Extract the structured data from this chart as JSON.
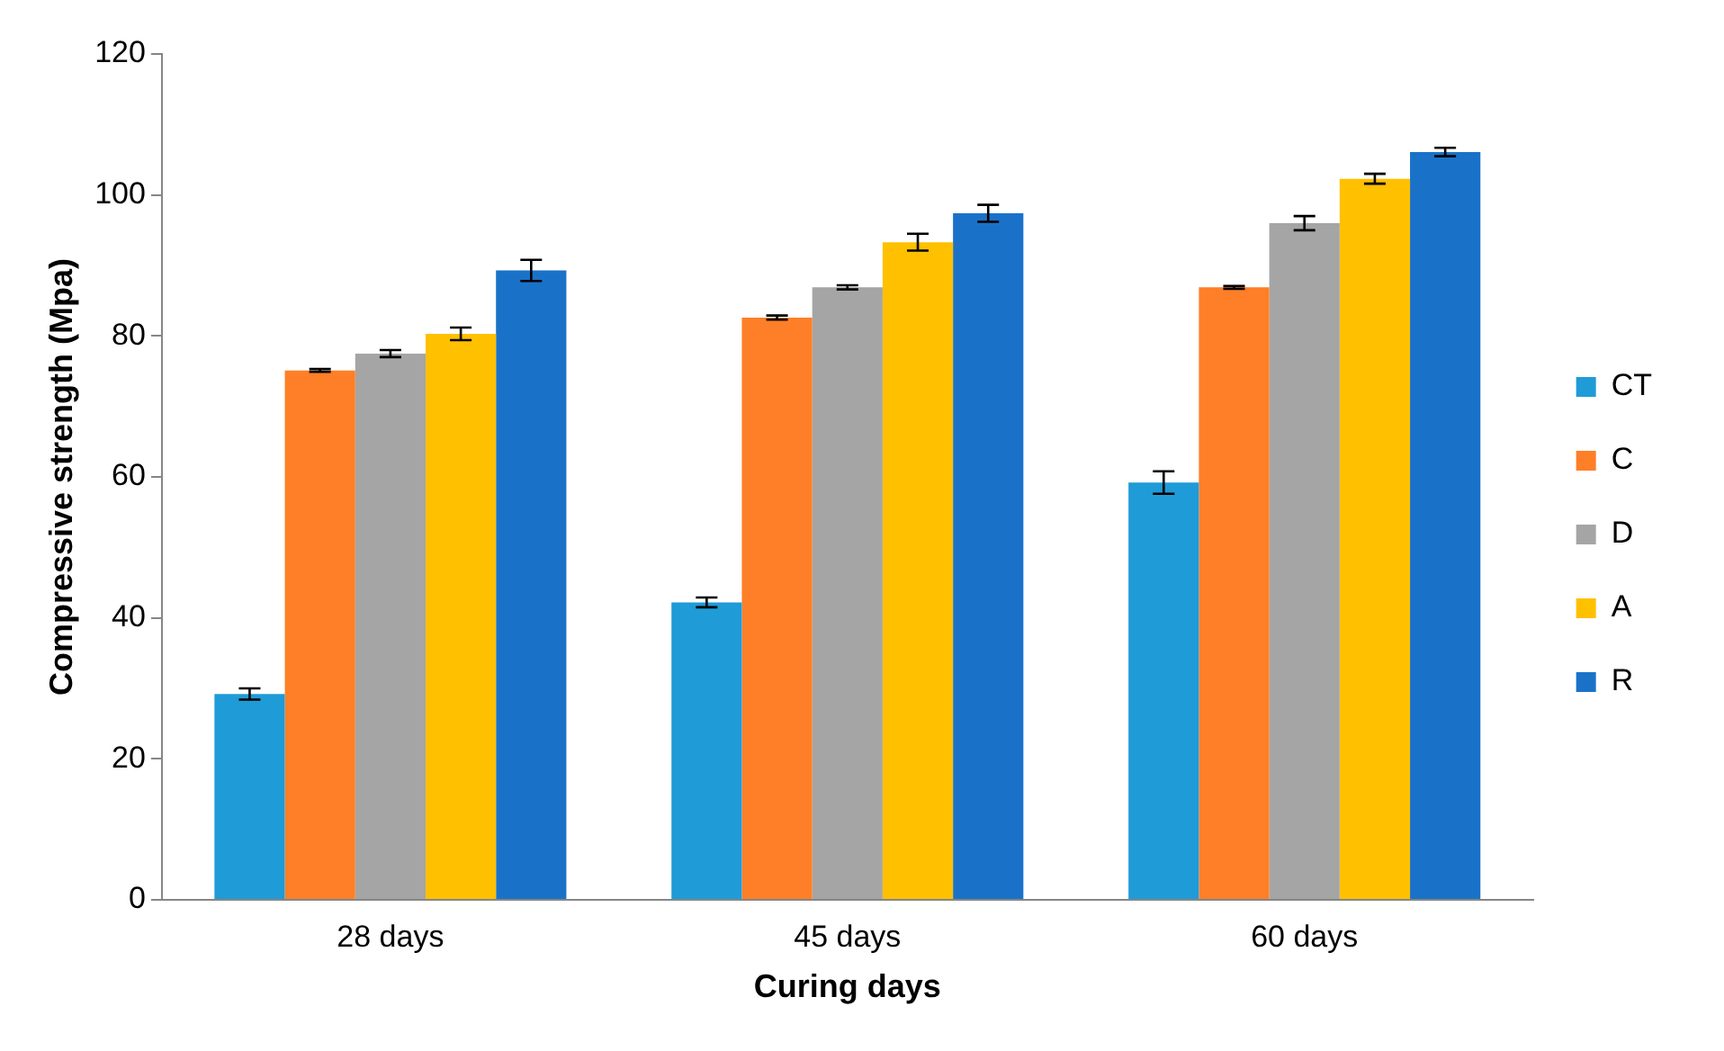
{
  "chart_data": {
    "type": "bar",
    "xlabel": "Curing days",
    "ylabel": "Compressive strength (Mpa)",
    "categories": [
      "28 days",
      "45 days",
      "60 days"
    ],
    "series": [
      {
        "name": "CT",
        "color": "#1f9bd7",
        "values": [
          29.2,
          42.2,
          59.2
        ],
        "errors": [
          0.8,
          0.7,
          1.6
        ]
      },
      {
        "name": "C",
        "color": "#fe7f27",
        "values": [
          75.1,
          82.6,
          86.9
        ],
        "errors": [
          0.2,
          0.3,
          0.2
        ]
      },
      {
        "name": "D",
        "color": "#a5a5a5",
        "values": [
          77.5,
          86.9,
          96
        ],
        "errors": [
          0.5,
          0.3,
          1
        ]
      },
      {
        "name": "A",
        "color": "#ffc000",
        "values": [
          80.3,
          93.3,
          102.3
        ],
        "errors": [
          0.9,
          1.2,
          0.7
        ]
      },
      {
        "name": "R",
        "color": "#1a72c8",
        "values": [
          89.3,
          97.4,
          106.1
        ],
        "errors": [
          1.5,
          1.2,
          0.6
        ]
      }
    ],
    "ylim": [
      0,
      120
    ],
    "yticks": [
      0,
      20,
      40,
      60,
      80,
      100,
      120
    ],
    "grid": false,
    "legend": "right"
  }
}
